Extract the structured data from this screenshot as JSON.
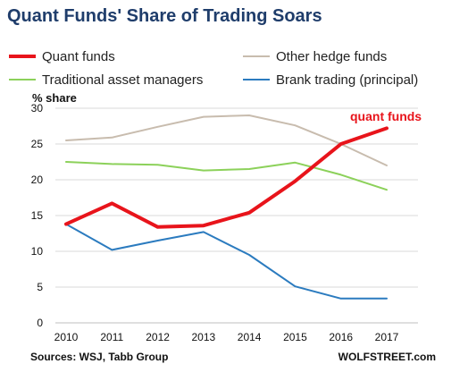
{
  "chart_data": {
    "type": "line",
    "title": "Quant Funds' Share of Trading Soars",
    "ylabel": "% share",
    "xlabel": "",
    "x": [
      2010,
      2011,
      2012,
      2013,
      2014,
      2015,
      2016,
      2017
    ],
    "ylim": [
      0,
      30
    ],
    "yticks": [
      0,
      5,
      10,
      15,
      20,
      25,
      30
    ],
    "grid": "horizontal",
    "legend_position": "top",
    "series": [
      {
        "name": "Quant funds",
        "color": "#e8141b",
        "emphasis": true,
        "values": [
          13.8,
          16.7,
          13.4,
          13.6,
          15.4,
          19.8,
          25.0,
          27.2
        ]
      },
      {
        "name": "Other hedge funds",
        "color": "#c8bcae",
        "emphasis": false,
        "values": [
          25.5,
          25.9,
          27.4,
          28.8,
          29.0,
          27.6,
          25.0,
          22.0
        ]
      },
      {
        "name": "Traditional asset managers",
        "color": "#8cd15a",
        "emphasis": false,
        "values": [
          22.5,
          22.2,
          22.1,
          21.3,
          21.5,
          22.4,
          20.7,
          18.6
        ]
      },
      {
        "name": "Brank trading (principal)",
        "color": "#2b7bbf",
        "emphasis": false,
        "values": [
          13.8,
          10.2,
          11.5,
          12.7,
          9.5,
          5.1,
          3.4,
          3.4
        ]
      }
    ],
    "annotation": {
      "text": "quant funds",
      "series": "Quant funds"
    },
    "source": "Sources: WSJ, Tabb Group",
    "credit": "WOLFSTREET.com"
  }
}
